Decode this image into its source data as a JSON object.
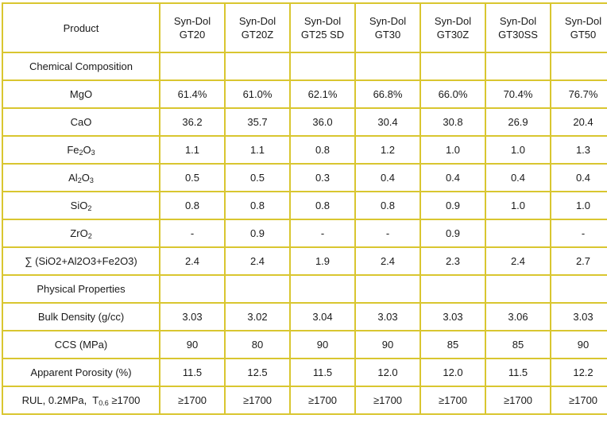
{
  "header": {
    "label": "Product",
    "products": [
      {
        "line1": "Syn-Dol",
        "line2": "GT20"
      },
      {
        "line1": "Syn-Dol",
        "line2": "GT20Z"
      },
      {
        "line1": "Syn-Dol",
        "line2": "GT25 SD"
      },
      {
        "line1": "Syn-Dol",
        "line2": "GT30"
      },
      {
        "line1": "Syn-Dol",
        "line2": "GT30Z"
      },
      {
        "line1": "Syn-Dol",
        "line2": "GT30SS"
      },
      {
        "line1": "Syn-Dol",
        "line2": "GT50"
      }
    ]
  },
  "sections": {
    "chemical": "Chemical Composition",
    "physical": "Physical Properties"
  },
  "rows": {
    "mgo": {
      "label": "MgO",
      "values": [
        "61.4%",
        "61.0%",
        "62.1%",
        "66.8%",
        "66.0%",
        "70.4%",
        "76.7%"
      ]
    },
    "cao": {
      "label": "CaO",
      "values": [
        "36.2",
        "35.7",
        "36.0",
        "30.4",
        "30.8",
        "26.9",
        "20.4"
      ]
    },
    "fe2o3": {
      "label_main": "Fe",
      "label_sub1": "2",
      "label_mid": "O",
      "label_sub2": "3",
      "values": [
        "1.1",
        "1.1",
        "0.8",
        "1.2",
        "1.0",
        "1.0",
        "1.3"
      ]
    },
    "al2o3": {
      "label_main": "Al",
      "label_sub1": "2",
      "label_mid": "O",
      "label_sub2": "3",
      "values": [
        "0.5",
        "0.5",
        "0.3",
        "0.4",
        "0.4",
        "0.4",
        "0.4"
      ]
    },
    "sio2": {
      "label_main": "SiO",
      "label_sub1": "2",
      "values": [
        "0.8",
        "0.8",
        "0.8",
        "0.8",
        "0.9",
        "1.0",
        "1.0"
      ]
    },
    "zro2": {
      "label_main": "ZrO",
      "label_sub1": "2",
      "values": [
        "-",
        "0.9",
        "-",
        "-",
        "0.9",
        "",
        "-"
      ]
    },
    "sum": {
      "label": "∑ (SiO2+Al2O3+Fe2O3)",
      "values": [
        "2.4",
        "2.4",
        "1.9",
        "2.4",
        "2.3",
        "2.4",
        "2.7"
      ]
    },
    "bulk": {
      "label": "Bulk Density (g/cc)",
      "values": [
        "3.03",
        "3.02",
        "3.04",
        "3.03",
        "3.03",
        "3.06",
        "3.03"
      ]
    },
    "ccs": {
      "label": "CCS (MPa)",
      "values": [
        "90",
        "80",
        "90",
        "90",
        "85",
        "85",
        "90"
      ]
    },
    "porosity": {
      "label": "Apparent Porosity (%)",
      "values": [
        "11.5",
        "12.5",
        "11.5",
        "12.0",
        "12.0",
        "11.5",
        "12.2"
      ]
    },
    "rul": {
      "label_main": "RUL, 0.2MPa,  T",
      "label_sub1": "0.6",
      "label_tail": " ≥1700",
      "values": [
        "≥1700",
        "≥1700",
        "≥1700",
        "≥1700",
        "≥1700",
        "≥1700",
        "≥1700"
      ]
    }
  }
}
